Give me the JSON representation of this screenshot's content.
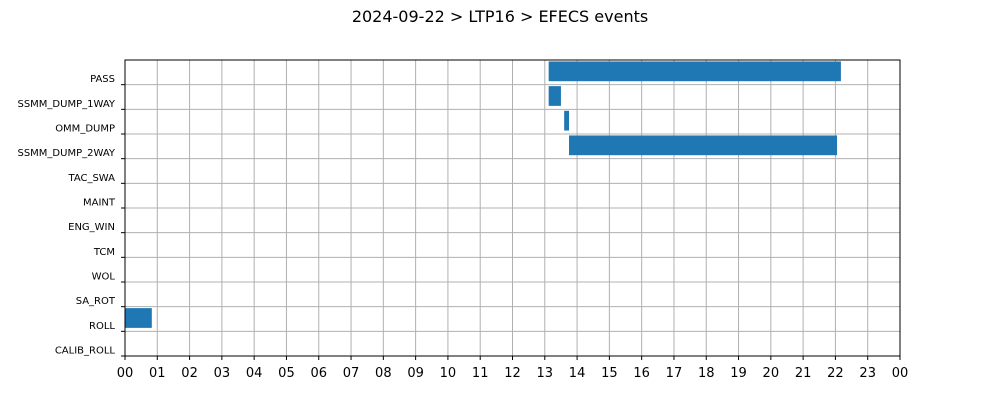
{
  "chart_data": {
    "type": "bar",
    "orientation": "horizontal-gantt",
    "title": "2024-09-22 > LTP16 > EFECS events",
    "categories": [
      "PASS",
      "SSMM_DUMP_1WAY",
      "OMM_DUMP",
      "SSMM_DUMP_2WAY",
      "TAC_SWA",
      "MAINT",
      "ENG_WIN",
      "TCM",
      "WOL",
      "SA_ROT",
      "ROLL",
      "CALIB_ROLL"
    ],
    "x_tick_labels": [
      "00",
      "01",
      "02",
      "03",
      "04",
      "05",
      "06",
      "07",
      "08",
      "09",
      "10",
      "11",
      "12",
      "13",
      "14",
      "15",
      "16",
      "17",
      "18",
      "19",
      "20",
      "21",
      "22",
      "23",
      "00"
    ],
    "xlim": [
      0,
      24
    ],
    "xunit": "hour",
    "grid": true,
    "bar_color": "#1f77b4",
    "events": [
      {
        "category": "PASS",
        "start": 13.12,
        "end": 22.17
      },
      {
        "category": "SSMM_DUMP_1WAY",
        "start": 13.12,
        "end": 13.5
      },
      {
        "category": "OMM_DUMP",
        "start": 13.6,
        "end": 13.75
      },
      {
        "category": "SSMM_DUMP_2WAY",
        "start": 13.75,
        "end": 22.05
      },
      {
        "category": "ROLL",
        "start": 0.0,
        "end": 0.83
      }
    ]
  }
}
